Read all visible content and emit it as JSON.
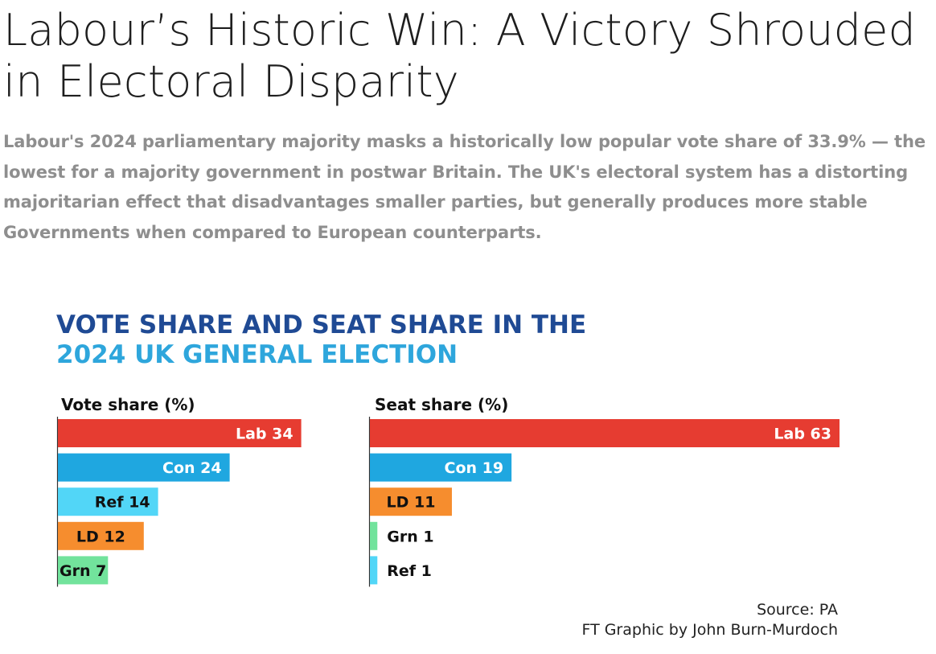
{
  "headline": "Labour’s Historic Win: A Victory Shrouded in Electoral Disparity",
  "subheadline": "Labour's 2024 parliamentary majority masks a historically low popular vote share of 33.9% — the lowest for a majority government in postwar Britain. The UK's electoral system has a distorting majoritarian effect that disadvantages smaller parties, but generally produces more stable Governments when compared to European counterparts.",
  "chart_data": {
    "type": "bar",
    "orientation": "horizontal",
    "title_line1": "VOTE SHARE AND SEAT SHARE IN THE",
    "title_line2": "2024 UK GENERAL ELECTION",
    "colors": {
      "title_dark": "#1f4a94",
      "title_light": "#2ea6dc",
      "Lab": "#e63c31",
      "Con": "#1fa7e0",
      "Ref": "#52d6f7",
      "LD": "#f68d2e",
      "Grn": "#72e39c"
    },
    "panels": [
      {
        "title": "Vote share (%)",
        "series": [
          {
            "party": "Lab",
            "value": 34
          },
          {
            "party": "Con",
            "value": 24
          },
          {
            "party": "Ref",
            "value": 14
          },
          {
            "party": "LD",
            "value": 12
          },
          {
            "party": "Grn",
            "value": 7
          }
        ]
      },
      {
        "title": "Seat share (%)",
        "series": [
          {
            "party": "Lab",
            "value": 63
          },
          {
            "party": "Con",
            "value": 19
          },
          {
            "party": "LD",
            "value": 11
          },
          {
            "party": "Grn",
            "value": 1
          },
          {
            "party": "Ref",
            "value": 1
          }
        ]
      }
    ],
    "source": "Source: PA",
    "credit": "FT Graphic by John Burn-Murdoch"
  }
}
